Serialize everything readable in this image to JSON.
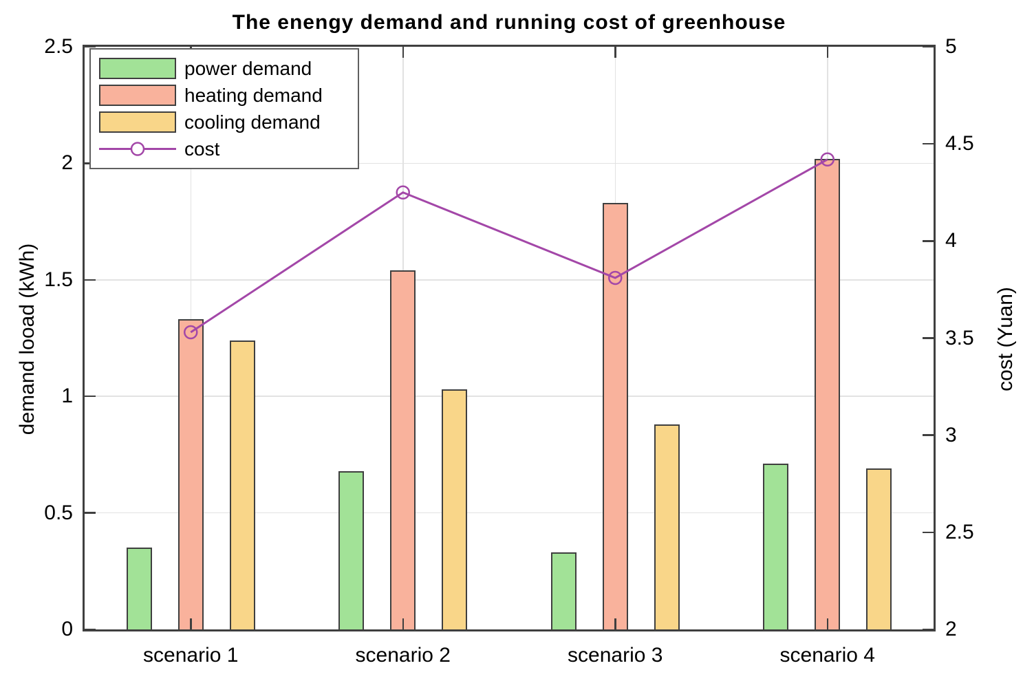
{
  "chart_data": {
    "type": "bar",
    "title": "The enengy demand and running cost of greenhouse",
    "xlabel": "",
    "ylabel_left": "demand looad (kWh)",
    "ylabel_right": "cost (Yuan)",
    "categories": [
      "scenario 1",
      "scenario 2",
      "scenario 3",
      "scenario 4"
    ],
    "series": [
      {
        "name": "power demand",
        "axis": "left",
        "color": "#A2E297",
        "values": [
          0.35,
          0.68,
          0.33,
          0.71
        ]
      },
      {
        "name": "heating demand",
        "axis": "left",
        "color": "#F9B29C",
        "values": [
          1.33,
          1.54,
          1.83,
          2.02
        ]
      },
      {
        "name": "cooling demand",
        "axis": "left",
        "color": "#F9D689",
        "values": [
          1.24,
          1.03,
          0.88,
          0.69
        ]
      }
    ],
    "line_series": {
      "name": "cost",
      "type": "line",
      "axis": "right",
      "color": "#A347A8",
      "marker": "open-circle",
      "values": [
        3.53,
        4.25,
        3.81,
        4.42
      ]
    },
    "ylim_left": [
      0,
      2.5
    ],
    "ylim_right": [
      2,
      5
    ],
    "yticks_left": [
      0,
      0.5,
      1,
      1.5,
      2,
      2.5
    ],
    "yticks_right": [
      2,
      2.5,
      3,
      3.5,
      4,
      4.5,
      5
    ],
    "grid": true,
    "legend_position": "top-left",
    "bar_edge_color": "#3F3F3F",
    "axis_color": "#3F3F3F",
    "grid_color": "#E2E2E2",
    "text_color": "#000000"
  }
}
